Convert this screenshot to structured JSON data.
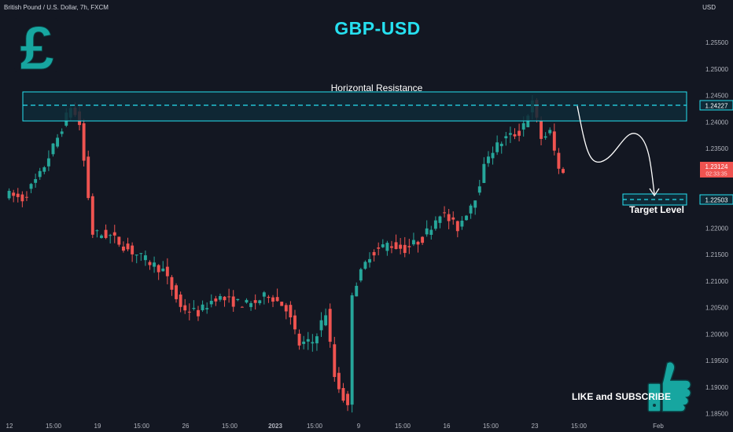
{
  "header": {
    "symbol": "British Pound / U.S. Dollar, 7h, FXCM",
    "currency": "USD",
    "title": "GBP-USD"
  },
  "annotations": {
    "resistance_label": "Horizontal Resistance",
    "target_label": "Target Level",
    "cta": "LIKE and SUBSCRIBE"
  },
  "icons": {
    "logo": "pound-sign-icon",
    "thumb": "thumbs-up-icon"
  },
  "colors": {
    "background": "#131722",
    "bull": "#26a69a",
    "bear": "#ef5350",
    "accent": "#26e0f0",
    "zone_fill": "#0f2a37",
    "logo_bg": "#17a6a0"
  },
  "chart_data": {
    "type": "candlestick",
    "y_axis": {
      "position": "right",
      "ylim": [
        1.183,
        1.263
      ],
      "ticks": [
        "1.25500",
        "1.25000",
        "1.24500",
        "1.24000",
        "1.23500",
        "1.23000",
        "1.22500",
        "1.22000",
        "1.21500",
        "1.21000",
        "1.20500",
        "1.20000",
        "1.19500",
        "1.19000",
        "1.18500"
      ]
    },
    "x_axis": {
      "ticks": [
        "12",
        "15:00",
        "19",
        "15:00",
        "26",
        "15:00",
        "2023",
        "15:00",
        "9",
        "15:00",
        "16",
        "15:00",
        "23",
        "15:00",
        "Feb"
      ]
    },
    "price_labels": {
      "resistance": "1.24227",
      "current": "1.23124",
      "countdown": "02:33:35",
      "target": "1.22503"
    },
    "resistance_zone": {
      "low": 1.2398,
      "high": 1.2448,
      "line": 1.24227
    },
    "target_zone": {
      "low": 1.2245,
      "high": 1.2255,
      "line": 1.22503
    },
    "grid": false
  }
}
